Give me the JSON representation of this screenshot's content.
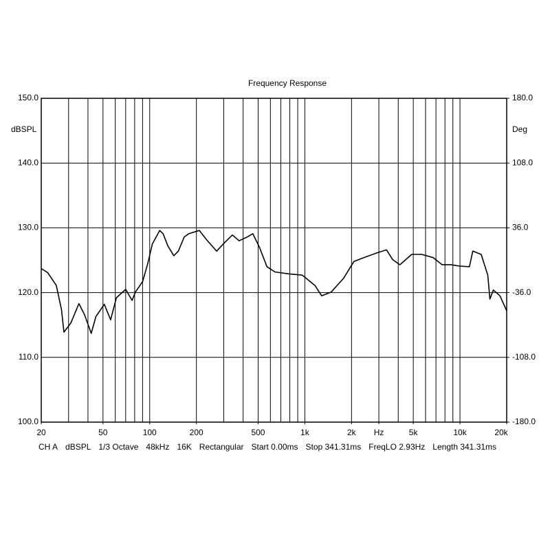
{
  "chart_data": {
    "type": "line",
    "title": "Frequency Response",
    "y_axis_label": "dBSPL",
    "y2_axis_label": "Deg",
    "log_x": true,
    "grid": true,
    "xlim": [
      20,
      20000
    ],
    "xticks": [
      20,
      50,
      100,
      200,
      500,
      {
        "value": 1000,
        "label": "1k"
      },
      {
        "value": 2000,
        "label": "2k"
      },
      {
        "value": 3000,
        "label": "Hz"
      },
      {
        "value": 5000,
        "label": "5k"
      },
      {
        "value": 10000,
        "label": "10k"
      },
      {
        "value": 20000,
        "label": "20k"
      }
    ],
    "xgrid": [
      30,
      40,
      50,
      60,
      70,
      80,
      90,
      100,
      200,
      300,
      400,
      500,
      600,
      700,
      800,
      900,
      1000,
      2000,
      3000,
      4000,
      5000,
      6000,
      7000,
      8000,
      9000,
      10000
    ],
    "ylim": [
      100,
      150
    ],
    "yticks": [
      {
        "value": 100,
        "label": "100.0"
      },
      {
        "value": 110,
        "label": "110.0"
      },
      {
        "value": 120,
        "label": "120.0"
      },
      {
        "value": 130,
        "label": "130.0"
      },
      {
        "value": 140,
        "label": "140.0"
      },
      {
        "value": 150,
        "label": "150.0"
      }
    ],
    "y2lim": [
      -180,
      180
    ],
    "y2ticks": [
      {
        "value": -180,
        "label": "-180.0"
      },
      {
        "value": -108,
        "label": "-108.0"
      },
      {
        "value": -36,
        "label": "-36.0"
      },
      {
        "value": 36,
        "label": "36.0"
      },
      {
        "value": 108,
        "label": "108.0"
      },
      {
        "value": 180,
        "label": "180.0"
      }
    ],
    "x": [
      20,
      22,
      25,
      27,
      28,
      31,
      35,
      38,
      42,
      45,
      51,
      56,
      61,
      70,
      77,
      81,
      90,
      97,
      104,
      116,
      122,
      131,
      143,
      153,
      167,
      179,
      209,
      232,
      270,
      298,
      341,
      377,
      426,
      462,
      510,
      570,
      640,
      784,
      964,
      1162,
      1284,
      1480,
      1776,
      2070,
      2400,
      2890,
      3360,
      3680,
      4100,
      4880,
      5670,
      6720,
      7670,
      8760,
      9900,
      11500,
      12100,
      13700,
      15100,
      15600,
      16400,
      18100,
      20000
    ],
    "series": [
      {
        "color": "#000000",
        "values": [
          123.7,
          123.1,
          121.1,
          117.4,
          113.9,
          115.3,
          118.3,
          116.6,
          113.7,
          116.3,
          118.2,
          115.8,
          119.2,
          120.5,
          118.8,
          120.1,
          121.7,
          124.4,
          127.5,
          129.6,
          129.1,
          127.2,
          125.7,
          126.4,
          128.6,
          129.1,
          129.6,
          128.2,
          126.4,
          127.5,
          128.9,
          128.0,
          128.6,
          129.1,
          127.0,
          124.0,
          123.2,
          122.9,
          122.7,
          121.1,
          119.5,
          120.1,
          122.2,
          124.8,
          125.4,
          126.1,
          126.6,
          125.1,
          124.3,
          125.9,
          125.9,
          125.4,
          124.3,
          124.3,
          124.1,
          124.0,
          126.4,
          125.9,
          122.7,
          119.0,
          120.4,
          119.5,
          117.2
        ]
      }
    ],
    "footer": [
      "CH A",
      "dBSPL",
      "1/3 Octave",
      "48kHz",
      "16K",
      "Rectangular",
      "Start 0.00ms",
      "Stop 341.31ms",
      "FreqLO 2.93Hz",
      "Length 341.31ms"
    ]
  }
}
